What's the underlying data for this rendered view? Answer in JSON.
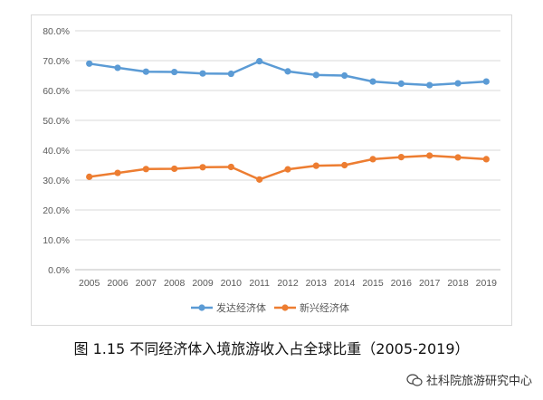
{
  "chart_data": {
    "type": "line",
    "title": "",
    "xlabel": "",
    "ylabel": "",
    "x": [
      "2005",
      "2006",
      "2007",
      "2008",
      "2009",
      "2010",
      "2011",
      "2012",
      "2013",
      "2014",
      "2015",
      "2016",
      "2017",
      "2018",
      "2019"
    ],
    "ylim": [
      0,
      80
    ],
    "y_ticks": [
      "0.0%",
      "10.0%",
      "20.0%",
      "30.0%",
      "40.0%",
      "50.0%",
      "60.0%",
      "70.0%",
      "80.0%"
    ],
    "grid": true,
    "legend_position": "bottom",
    "series": [
      {
        "name": "发达经济体",
        "color": "#5b9bd5",
        "values": [
          69.0,
          67.6,
          66.3,
          66.2,
          65.7,
          65.6,
          69.8,
          66.4,
          65.2,
          65.0,
          63.0,
          62.3,
          61.8,
          62.4,
          63.0
        ]
      },
      {
        "name": "新兴经济体",
        "color": "#ed7d31",
        "values": [
          31.1,
          32.4,
          33.7,
          33.8,
          34.3,
          34.4,
          30.2,
          33.6,
          34.8,
          35.0,
          37.0,
          37.7,
          38.2,
          37.6,
          37.0
        ]
      }
    ]
  },
  "caption": "图 1.15 不同经济体入境旅游收入占全球比重（2005-2019）",
  "watermark": "社科院旅游研究中心"
}
